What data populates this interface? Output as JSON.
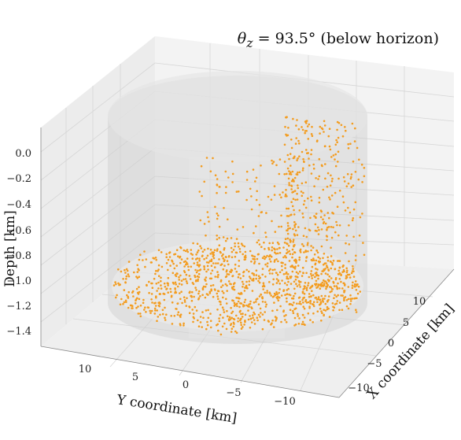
{
  "chart_data": {
    "type": "scatter",
    "title": {
      "symbol": "θ",
      "subscript": "z",
      "text": " = 93.5° (below horizon)"
    },
    "xlabel": "X coordinate [km]",
    "ylabel": "Y coordinate [km]",
    "zlabel": "Depth [km]",
    "xlim": [
      -12,
      12
    ],
    "ylim": [
      -12,
      12
    ],
    "zlim": [
      -1.5,
      0.1
    ],
    "x_ticks": [
      "−10",
      "−5",
      "0",
      "5",
      "10"
    ],
    "y_ticks": [
      "10",
      "5",
      "0",
      "−5",
      "−10"
    ],
    "z_ticks": [
      "0.0",
      "−0.2",
      "−0.4",
      "−0.6",
      "−0.8",
      "−1.0",
      "−1.2",
      "−1.4"
    ],
    "cylinder": {
      "radius_km": 10,
      "depth_top": 0.0,
      "depth_bottom": -1.5
    },
    "series": [
      {
        "color": "#f39c1f",
        "description_count": 1600
      }
    ],
    "grid": true,
    "pane_color": "#f2f2f2",
    "cylinder_color": "#d9d9d9"
  }
}
